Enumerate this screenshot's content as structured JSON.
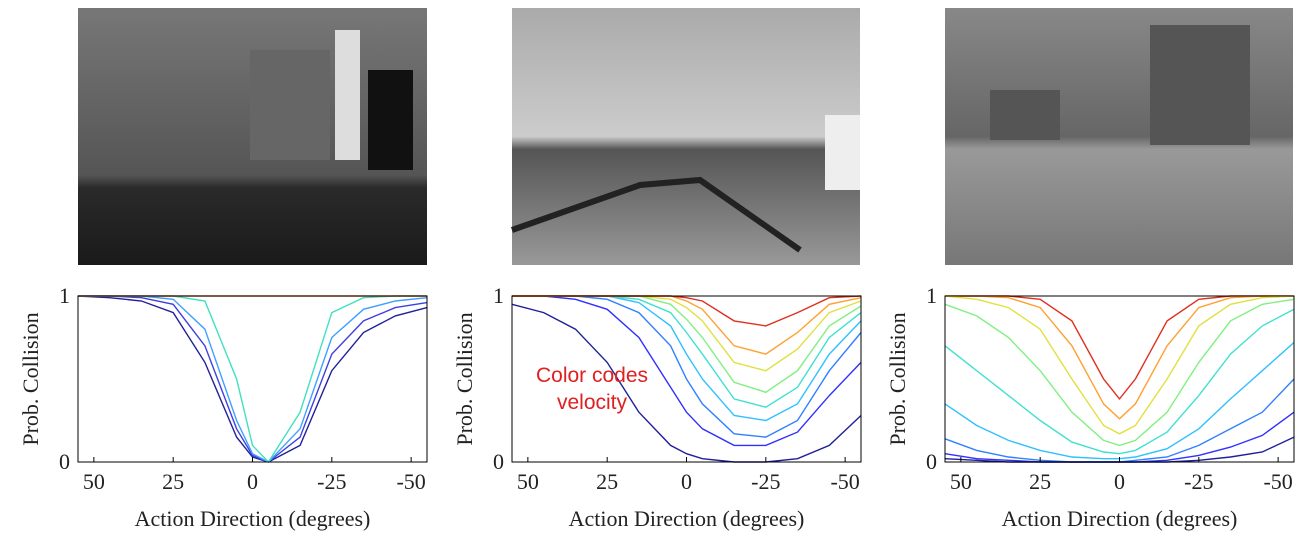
{
  "chart_data": [
    {
      "type": "line",
      "xlabel": "Action Direction (degrees)",
      "ylabel": "Prob. Collision",
      "x": [
        55,
        45,
        35,
        25,
        15,
        5,
        0,
        -5,
        -15,
        -25,
        -35,
        -45,
        -55
      ],
      "xlim": [
        55,
        -55
      ],
      "xticks": [
        50,
        25,
        0,
        -25,
        -50
      ],
      "ylim": [
        0,
        1
      ],
      "yticks": [
        0,
        1
      ],
      "series": [
        {
          "color": "#20209a",
          "values": [
            1,
            0.99,
            0.97,
            0.9,
            0.6,
            0.15,
            0.03,
            0,
            0.1,
            0.55,
            0.78,
            0.88,
            0.93
          ]
        },
        {
          "color": "#4040e0",
          "values": [
            1,
            1,
            0.99,
            0.95,
            0.7,
            0.2,
            0.04,
            0,
            0.15,
            0.65,
            0.85,
            0.93,
            0.96
          ]
        },
        {
          "color": "#40a0ff",
          "values": [
            1,
            1,
            1,
            0.98,
            0.8,
            0.25,
            0.05,
            0,
            0.2,
            0.75,
            0.92,
            0.97,
            0.99
          ]
        },
        {
          "color": "#40e0c0",
          "values": [
            1,
            1,
            1,
            1,
            0.97,
            0.5,
            0.1,
            0,
            0.3,
            0.9,
            0.99,
            1,
            1
          ]
        },
        {
          "color": "#ff6030",
          "values": [
            1,
            1,
            1,
            1,
            1,
            1,
            1,
            1,
            1,
            1,
            1,
            1,
            1
          ]
        }
      ]
    },
    {
      "type": "line",
      "xlabel": "Action Direction (degrees)",
      "ylabel": "Prob. Collision",
      "annotation": [
        "Color codes",
        "velocity"
      ],
      "x": [
        55,
        45,
        35,
        25,
        15,
        5,
        0,
        -5,
        -15,
        -25,
        -35,
        -45,
        -55
      ],
      "xlim": [
        55,
        -55
      ],
      "xticks": [
        50,
        25,
        0,
        -25,
        -50
      ],
      "ylim": [
        0,
        1
      ],
      "yticks": [
        0,
        1
      ],
      "series": [
        {
          "color": "#20209a",
          "values": [
            0.95,
            0.9,
            0.8,
            0.6,
            0.3,
            0.1,
            0.05,
            0.02,
            0,
            0,
            0.02,
            0.1,
            0.28
          ]
        },
        {
          "color": "#3030ff",
          "values": [
            1,
            1,
            0.98,
            0.92,
            0.75,
            0.45,
            0.3,
            0.2,
            0.1,
            0.1,
            0.18,
            0.4,
            0.6
          ]
        },
        {
          "color": "#3080ff",
          "values": [
            1,
            1,
            1,
            0.98,
            0.9,
            0.7,
            0.5,
            0.35,
            0.17,
            0.15,
            0.25,
            0.55,
            0.78
          ]
        },
        {
          "color": "#30c0ff",
          "values": [
            1,
            1,
            1,
            1,
            0.96,
            0.82,
            0.65,
            0.5,
            0.28,
            0.25,
            0.35,
            0.65,
            0.85
          ]
        },
        {
          "color": "#40e0d0",
          "values": [
            1,
            1,
            1,
            1,
            0.98,
            0.9,
            0.78,
            0.65,
            0.38,
            0.33,
            0.45,
            0.75,
            0.9
          ]
        },
        {
          "color": "#80f080",
          "values": [
            1,
            1,
            1,
            1,
            1,
            0.95,
            0.86,
            0.75,
            0.48,
            0.42,
            0.55,
            0.82,
            0.94
          ]
        },
        {
          "color": "#e0e040",
          "values": [
            1,
            1,
            1,
            1,
            1,
            0.98,
            0.93,
            0.85,
            0.6,
            0.55,
            0.68,
            0.9,
            0.97
          ]
        },
        {
          "color": "#ffa030",
          "values": [
            1,
            1,
            1,
            1,
            1,
            1,
            0.97,
            0.92,
            0.7,
            0.65,
            0.78,
            0.95,
            0.99
          ]
        },
        {
          "color": "#e03020",
          "values": [
            1,
            1,
            1,
            1,
            1,
            1,
            0.99,
            0.97,
            0.85,
            0.82,
            0.9,
            0.99,
            1
          ]
        }
      ]
    },
    {
      "type": "line",
      "xlabel": "Action Direction (degrees)",
      "ylabel": "Prob. Collision",
      "x": [
        55,
        45,
        35,
        25,
        15,
        5,
        0,
        -5,
        -15,
        -25,
        -35,
        -45,
        -55
      ],
      "xlim": [
        55,
        -55
      ],
      "xticks": [
        50,
        25,
        0,
        -25,
        -50
      ],
      "ylim": [
        0,
        1
      ],
      "yticks": [
        0,
        1
      ],
      "series": [
        {
          "color": "#e03020",
          "values": [
            1,
            1,
            1,
            0.98,
            0.85,
            0.5,
            0.38,
            0.5,
            0.85,
            0.98,
            1,
            1,
            1
          ]
        },
        {
          "color": "#ffa030",
          "values": [
            1,
            1,
            0.99,
            0.93,
            0.7,
            0.35,
            0.26,
            0.35,
            0.7,
            0.93,
            0.99,
            1,
            1
          ]
        },
        {
          "color": "#e0e040",
          "values": [
            1,
            0.98,
            0.93,
            0.8,
            0.5,
            0.22,
            0.17,
            0.22,
            0.5,
            0.82,
            0.95,
            0.99,
            1
          ]
        },
        {
          "color": "#80f080",
          "values": [
            0.95,
            0.88,
            0.75,
            0.55,
            0.3,
            0.13,
            0.1,
            0.13,
            0.3,
            0.6,
            0.85,
            0.95,
            0.98
          ]
        },
        {
          "color": "#40e0d0",
          "values": [
            0.7,
            0.55,
            0.4,
            0.25,
            0.12,
            0.06,
            0.05,
            0.07,
            0.18,
            0.4,
            0.65,
            0.82,
            0.92
          ]
        },
        {
          "color": "#30c0ff",
          "values": [
            0.35,
            0.22,
            0.13,
            0.07,
            0.03,
            0.02,
            0.02,
            0.03,
            0.08,
            0.2,
            0.38,
            0.55,
            0.72
          ]
        },
        {
          "color": "#3080ff",
          "values": [
            0.14,
            0.07,
            0.03,
            0.01,
            0,
            0,
            0,
            0.01,
            0.03,
            0.1,
            0.2,
            0.3,
            0.5
          ]
        },
        {
          "color": "#3030ff",
          "values": [
            0.05,
            0.02,
            0.01,
            0,
            0,
            0,
            0,
            0,
            0.01,
            0.04,
            0.09,
            0.16,
            0.3
          ]
        },
        {
          "color": "#20209a",
          "values": [
            0.02,
            0.01,
            0,
            0,
            0,
            0,
            0,
            0,
            0,
            0.01,
            0.03,
            0.06,
            0.15
          ]
        }
      ]
    }
  ]
}
